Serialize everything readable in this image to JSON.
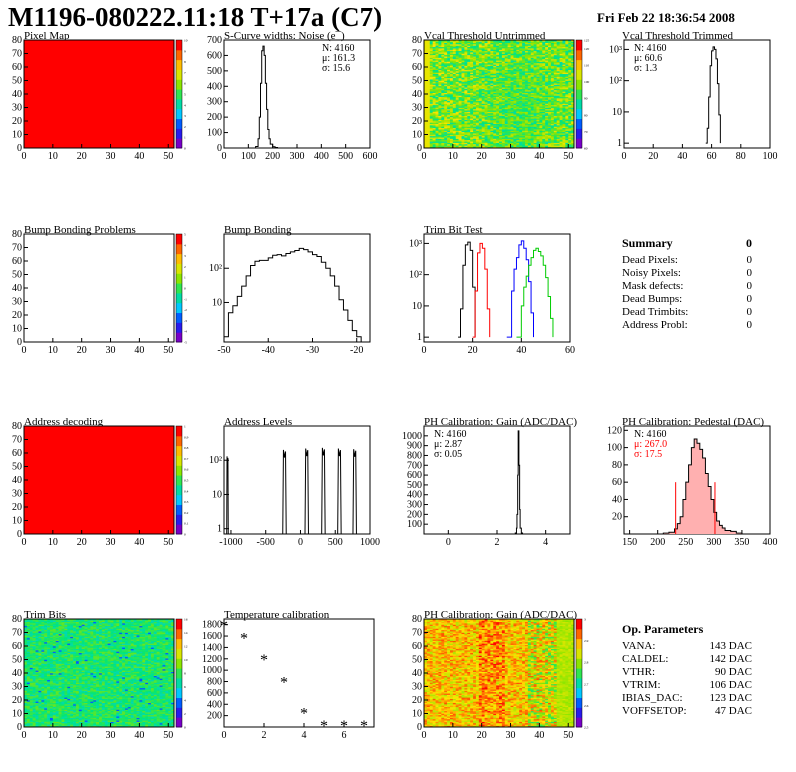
{
  "header": {
    "title": "M1196-080222.11:18 T+17a (C7)",
    "date": "Fri Feb 22 18:36:54 2008"
  },
  "colors": {
    "map_fill": "#ff0000",
    "hist_line": "#000000",
    "trim_red": "#ff0000",
    "trim_blue": "#0000ff",
    "trim_green": "#00cc00",
    "pedestal_fill": "#ffb0b0"
  },
  "panels": {
    "pixel_map": {
      "title": "Pixel Map"
    },
    "scurve": {
      "title": "S-Curve widths: Noise (e¯)",
      "stats": [
        "N: 4160",
        "μ: 161.3",
        "σ: 15.6"
      ]
    },
    "vcal_untrimmed": {
      "title": "Vcal Threshold Untrimmed"
    },
    "vcal_trimmed": {
      "title": "Vcal Threshold Trimmed",
      "stats": [
        "N: 4160",
        "μ: 60.6",
        "σ: 1.3"
      ]
    },
    "bump_problems": {
      "title": "Bump Bonding Problems"
    },
    "bump_bonding": {
      "title": "Bump Bonding"
    },
    "trim_bit_test": {
      "title": "Trim Bit Test"
    },
    "address_decoding": {
      "title": "Address decoding"
    },
    "address_levels": {
      "title": "Address Levels"
    },
    "ph_gain": {
      "title": "PH Calibration: Gain (ADC/DAC)",
      "stats": [
        "N: 4160",
        "μ: 2.87",
        "σ: 0.05"
      ]
    },
    "ph_pedestal": {
      "title": "PH Calibration: Pedestal (DAC)",
      "stats": [
        "N: 4160",
        "μ: 267.0",
        "σ: 17.5"
      ]
    },
    "trim_bits": {
      "title": "Trim Bits"
    },
    "temperature": {
      "title": "Temperature calibration"
    },
    "ph_gain_map": {
      "title": "PH Calibration: Gain (ADC/DAC)"
    }
  },
  "summary": {
    "heading": "Summary",
    "total": "0",
    "rows": [
      {
        "label": "Dead Pixels:",
        "value": "0"
      },
      {
        "label": "Noisy Pixels:",
        "value": "0"
      },
      {
        "label": "Mask defects:",
        "value": "0"
      },
      {
        "label": "Dead Bumps:",
        "value": "0"
      },
      {
        "label": "Dead Trimbits:",
        "value": "0"
      },
      {
        "label": "Address Probl:",
        "value": "0"
      }
    ]
  },
  "op_parameters": {
    "heading": "Op. Parameters",
    "rows": [
      {
        "label": "VANA:",
        "value": "143 DAC"
      },
      {
        "label": "CALDEL:",
        "value": "142 DAC"
      },
      {
        "label": "VTHR:",
        "value": "90 DAC"
      },
      {
        "label": "VTRIM:",
        "value": "106 DAC"
      },
      {
        "label": "IBIAS_DAC:",
        "value": "123 DAC"
      },
      {
        "label": "VOFFSETOP:",
        "value": "47 DAC"
      }
    ]
  },
  "chart_data": [
    {
      "id": "pixel_map",
      "type": "heatmap",
      "xlim": [
        0,
        52
      ],
      "ylim": [
        0,
        80
      ],
      "xticks": [
        0,
        10,
        20,
        30,
        40,
        50
      ],
      "yticks": [
        0,
        10,
        20,
        30,
        40,
        50,
        60,
        70,
        80
      ],
      "fill": "uniform",
      "value": 10,
      "zlim": [
        0,
        10
      ],
      "zticks": [
        0,
        1,
        2,
        3,
        4,
        5,
        6,
        7,
        8,
        9,
        10
      ]
    },
    {
      "id": "scurve",
      "type": "line",
      "xlim": [
        0,
        600
      ],
      "ylim": [
        0,
        700
      ],
      "xticks": [
        0,
        100,
        200,
        300,
        400,
        500,
        600
      ],
      "yticks": [
        0,
        100,
        200,
        300,
        400,
        500,
        600,
        700
      ],
      "series": [
        {
          "x": [
            120,
            130,
            140,
            145,
            150,
            155,
            160,
            165,
            170,
            175,
            180,
            185,
            190,
            200,
            210,
            220
          ],
          "y": [
            0,
            10,
            60,
            200,
            420,
            630,
            660,
            600,
            420,
            250,
            120,
            60,
            25,
            8,
            3,
            0
          ]
        }
      ]
    },
    {
      "id": "vcal_untrimmed",
      "type": "heatmap",
      "xlim": [
        0,
        52
      ],
      "ylim": [
        0,
        80
      ],
      "xticks": [
        0,
        10,
        20,
        30,
        40,
        50
      ],
      "yticks": [
        0,
        10,
        20,
        30,
        40,
        50,
        60,
        70,
        80
      ],
      "fill": "noise",
      "zlim": [
        60,
        125
      ],
      "zticks": [
        60,
        70,
        80,
        90,
        100,
        110,
        120,
        125
      ]
    },
    {
      "id": "vcal_trimmed",
      "type": "line",
      "log_y": true,
      "xlim": [
        0,
        100
      ],
      "ylim": [
        0.7,
        2000
      ],
      "xticks": [
        0,
        20,
        40,
        60,
        80,
        100
      ],
      "yticks": [
        1,
        10,
        100,
        1000
      ],
      "series": [
        {
          "x": [
            56,
            57,
            58,
            59,
            60,
            61,
            62,
            63,
            64,
            65,
            66
          ],
          "y": [
            1,
            3,
            30,
            300,
            900,
            1200,
            1000,
            500,
            80,
            8,
            1
          ]
        }
      ]
    },
    {
      "id": "bump_problems",
      "type": "heatmap",
      "xlim": [
        0,
        52
      ],
      "ylim": [
        0,
        80
      ],
      "xticks": [
        0,
        10,
        20,
        30,
        40,
        50
      ],
      "yticks": [
        0,
        10,
        20,
        30,
        40,
        50,
        60,
        70,
        80
      ],
      "fill": "empty",
      "zlim": [
        -5,
        5
      ],
      "zticks": [
        -5,
        -4,
        -3,
        -2,
        -1,
        0,
        1,
        2,
        3,
        4,
        5
      ]
    },
    {
      "id": "bump_bonding",
      "type": "line",
      "log_y": true,
      "xlim": [
        -50,
        -17
      ],
      "ylim": [
        0.7,
        1000
      ],
      "xticks": [
        -50,
        -40,
        -30,
        -20
      ],
      "yticks": [
        10,
        100
      ],
      "series": [
        {
          "x": [
            -50,
            -49,
            -48,
            -47,
            -46,
            -45,
            -44,
            -43,
            -42,
            -41,
            -40,
            -39,
            -38,
            -37,
            -36,
            -35,
            -34,
            -33,
            -32,
            -31,
            -30,
            -29,
            -28,
            -27,
            -26,
            -25,
            -24,
            -23,
            -22,
            -21,
            -20,
            -19
          ],
          "y": [
            1,
            5,
            8,
            15,
            30,
            60,
            120,
            160,
            170,
            170,
            200,
            240,
            250,
            230,
            270,
            300,
            330,
            380,
            350,
            300,
            250,
            220,
            150,
            100,
            60,
            30,
            12,
            6,
            3,
            1.5,
            1,
            0.7
          ]
        }
      ]
    },
    {
      "id": "trim_bit_test",
      "type": "line",
      "log_y": true,
      "xlim": [
        0,
        60
      ],
      "ylim": [
        0.7,
        2000
      ],
      "xticks": [
        0,
        20,
        40,
        60
      ],
      "yticks": [
        1,
        10,
        100,
        1000
      ],
      "series": [
        {
          "name": "",
          "color": "#000000",
          "x": [
            14,
            15,
            16,
            17,
            18,
            19,
            20,
            21
          ],
          "y": [
            1,
            8,
            200,
            900,
            1100,
            600,
            40,
            1
          ]
        },
        {
          "name": "",
          "color": "#ff0000",
          "x": [
            20,
            21,
            22,
            23,
            24,
            25,
            26,
            27
          ],
          "y": [
            1,
            30,
            500,
            1000,
            700,
            150,
            8,
            1
          ]
        },
        {
          "name": "",
          "color": "#0000ff",
          "x": [
            34,
            36,
            37,
            38,
            39,
            40,
            41,
            42,
            43,
            44,
            45
          ],
          "y": [
            1,
            30,
            150,
            350,
            900,
            1200,
            700,
            300,
            60,
            6,
            1
          ]
        },
        {
          "name": "",
          "color": "#00cc00",
          "x": [
            38,
            40,
            41,
            42,
            43,
            44,
            45,
            46,
            47,
            48,
            49,
            50,
            51,
            52,
            53
          ],
          "y": [
            1,
            10,
            40,
            90,
            200,
            350,
            600,
            700,
            550,
            400,
            200,
            80,
            20,
            4,
            1
          ]
        }
      ]
    },
    {
      "id": "address_decoding",
      "type": "heatmap",
      "xlim": [
        0,
        52
      ],
      "ylim": [
        0,
        80
      ],
      "xticks": [
        0,
        10,
        20,
        30,
        40,
        50
      ],
      "yticks": [
        0,
        10,
        20,
        30,
        40,
        50,
        60,
        70,
        80
      ],
      "fill": "uniform",
      "value": 1,
      "zlim": [
        0,
        1
      ],
      "zticks": [
        0,
        0.1,
        0.2,
        0.3,
        0.4,
        0.5,
        0.6,
        0.7,
        0.8,
        0.9,
        1
      ]
    },
    {
      "id": "address_levels",
      "type": "line",
      "log_y": true,
      "xlim": [
        -1100,
        1000
      ],
      "ylim": [
        0.7,
        1000
      ],
      "xticks": [
        -1000,
        -500,
        0,
        500,
        1000
      ],
      "yticks": [
        1,
        10,
        100
      ],
      "peaks": [
        {
          "x": -1050,
          "h": 130,
          "w": 22
        },
        {
          "x": -230,
          "h": 200,
          "w": 50
        },
        {
          "x": 90,
          "h": 220,
          "w": 50
        },
        {
          "x": 330,
          "h": 230,
          "w": 50
        },
        {
          "x": 560,
          "h": 220,
          "w": 50
        },
        {
          "x": 780,
          "h": 210,
          "w": 50
        }
      ]
    },
    {
      "id": "ph_gain",
      "type": "line",
      "xlim": [
        -1,
        5
      ],
      "ylim": [
        0,
        1100
      ],
      "xticks": [
        0,
        2,
        4
      ],
      "yticks": [
        100,
        200,
        300,
        400,
        500,
        600,
        700,
        800,
        900,
        1000
      ],
      "series": [
        {
          "x": [
            2.7,
            2.75,
            2.8,
            2.82,
            2.85,
            2.87,
            2.9,
            2.93,
            2.95,
            3.0,
            3.05
          ],
          "y": [
            0,
            10,
            60,
            200,
            600,
            1050,
            700,
            250,
            60,
            10,
            0
          ]
        }
      ]
    },
    {
      "id": "ph_pedestal",
      "type": "line",
      "xlim": [
        140,
        400
      ],
      "ylim": [
        0,
        125
      ],
      "xticks": [
        150,
        200,
        250,
        300,
        350,
        400
      ],
      "yticks": [
        20,
        40,
        60,
        80,
        100,
        120
      ],
      "cut_lines": [
        232,
        302
      ],
      "series": [
        {
          "x": [
            200,
            210,
            220,
            230,
            235,
            240,
            245,
            250,
            255,
            260,
            265,
            270,
            275,
            280,
            285,
            290,
            295,
            300,
            305,
            310,
            315,
            320,
            330,
            340,
            350
          ],
          "y": [
            0,
            1,
            2,
            6,
            12,
            20,
            40,
            60,
            80,
            100,
            110,
            105,
            98,
            88,
            70,
            55,
            40,
            25,
            15,
            10,
            7,
            4,
            3,
            1,
            0
          ]
        }
      ]
    },
    {
      "id": "trim_bits",
      "type": "heatmap",
      "xlim": [
        0,
        52
      ],
      "ylim": [
        0,
        80
      ],
      "xticks": [
        0,
        10,
        20,
        30,
        40,
        50
      ],
      "yticks": [
        0,
        10,
        20,
        30,
        40,
        50,
        60,
        70,
        80
      ],
      "fill": "noise-green",
      "zlim": [
        0,
        16
      ],
      "zticks": [
        0,
        2,
        4,
        6,
        8,
        10,
        12,
        14,
        16
      ]
    },
    {
      "id": "temperature",
      "type": "scatter",
      "xlim": [
        0,
        7.5
      ],
      "ylim": [
        0,
        1900
      ],
      "xticks": [
        0,
        2,
        4,
        6
      ],
      "yticks": [
        200,
        400,
        600,
        800,
        1000,
        1200,
        1400,
        1600,
        1800
      ],
      "x": [
        0,
        1,
        2,
        3,
        4,
        5,
        6,
        7
      ],
      "y": [
        1780,
        1560,
        1180,
        780,
        240,
        20,
        20,
        20
      ]
    },
    {
      "id": "ph_gain_map",
      "type": "heatmap",
      "xlim": [
        0,
        52
      ],
      "ylim": [
        0,
        80
      ],
      "xticks": [
        0,
        10,
        20,
        30,
        40,
        50
      ],
      "yticks": [
        0,
        10,
        20,
        30,
        40,
        50,
        60,
        70,
        80
      ],
      "fill": "noise-red",
      "zlim": [
        2.5,
        3.0
      ],
      "zticks": [
        2.5,
        2.6,
        2.7,
        2.8,
        2.9,
        3.0
      ]
    }
  ]
}
